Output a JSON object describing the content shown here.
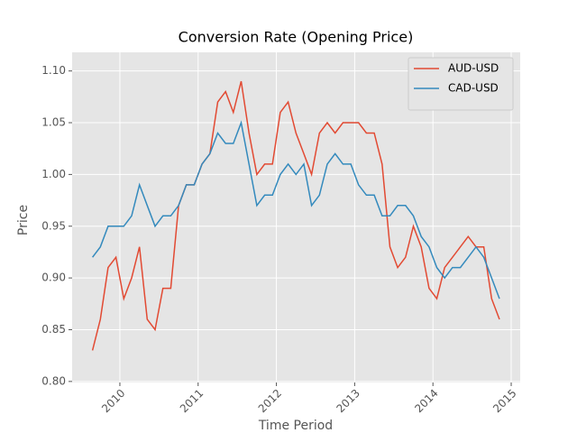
{
  "chart_data": {
    "type": "line",
    "title": "Conversion Rate (Opening Price)",
    "x_label": "Time Period",
    "y_label": "Price",
    "x": [
      2009.65,
      2009.75,
      2009.85,
      2009.95,
      2010.05,
      2010.15,
      2010.25,
      2010.35,
      2010.45,
      2010.55,
      2010.65,
      2010.75,
      2010.85,
      2010.95,
      2011.05,
      2011.15,
      2011.25,
      2011.35,
      2011.45,
      2011.55,
      2011.65,
      2011.75,
      2011.85,
      2011.95,
      2012.05,
      2012.15,
      2012.25,
      2012.35,
      2012.45,
      2012.55,
      2012.65,
      2012.75,
      2012.85,
      2012.95,
      2013.05,
      2013.15,
      2013.25,
      2013.35,
      2013.45,
      2013.55,
      2013.65,
      2013.75,
      2013.85,
      2013.95,
      2014.05,
      2014.15,
      2014.25,
      2014.35,
      2014.45,
      2014.55,
      2014.65,
      2014.75,
      2014.85
    ],
    "series": [
      {
        "name": "AUD-USD",
        "color": "#e24a33",
        "values": [
          0.83,
          0.86,
          0.91,
          0.92,
          0.88,
          0.9,
          0.93,
          0.86,
          0.85,
          0.89,
          0.89,
          0.97,
          0.99,
          0.99,
          1.01,
          1.02,
          1.07,
          1.08,
          1.06,
          1.09,
          1.04,
          1.0,
          1.01,
          1.01,
          1.06,
          1.07,
          1.04,
          1.02,
          1.0,
          1.04,
          1.05,
          1.04,
          1.05,
          1.05,
          1.05,
          1.04,
          1.04,
          1.01,
          0.93,
          0.91,
          0.92,
          0.95,
          0.93,
          0.89,
          0.88,
          0.91,
          0.92,
          0.93,
          0.94,
          0.93,
          0.93,
          0.88,
          0.86
        ]
      },
      {
        "name": "CAD-USD",
        "color": "#348abd",
        "values": [
          0.92,
          0.93,
          0.95,
          0.95,
          0.95,
          0.96,
          0.99,
          0.97,
          0.95,
          0.96,
          0.96,
          0.97,
          0.99,
          0.99,
          1.01,
          1.02,
          1.04,
          1.03,
          1.03,
          1.05,
          1.01,
          0.97,
          0.98,
          0.98,
          1.0,
          1.01,
          1.0,
          1.01,
          0.97,
          0.98,
          1.01,
          1.02,
          1.01,
          1.01,
          0.99,
          0.98,
          0.98,
          0.96,
          0.96,
          0.97,
          0.97,
          0.96,
          0.94,
          0.93,
          0.91,
          0.9,
          0.91,
          0.91,
          0.92,
          0.93,
          0.92,
          0.9,
          0.88
        ]
      }
    ],
    "xlim": [
      2009.39,
      2015.115
    ],
    "xticks": [
      2010,
      2011,
      2012,
      2013,
      2014,
      2015
    ],
    "ylim": [
      0.799,
      1.118
    ],
    "yticks": [
      {
        "value": 0.8,
        "label": "0.80"
      },
      0.85,
      {
        "value": 0.9,
        "label": "0.90"
      },
      0.95,
      {
        "value": 1.0,
        "label": "1.00"
      },
      1.05,
      {
        "value": 1.1,
        "label": "1.10"
      }
    ],
    "grid": true,
    "legend": "upper right"
  }
}
